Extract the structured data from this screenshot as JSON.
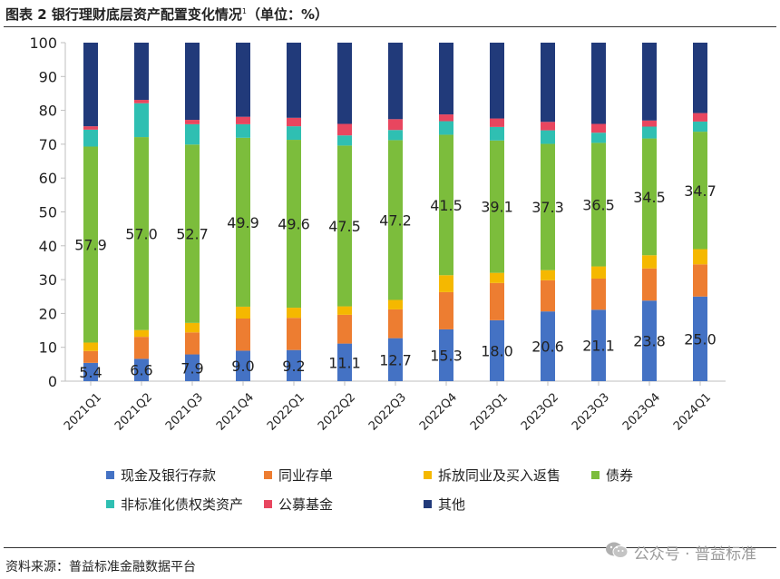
{
  "title": {
    "prefix": "图表 2 银行理财底层资产配置变化情况",
    "note_mark": "1",
    "suffix": "（单位：%）"
  },
  "source": "资料来源：普益标准金融数据平台",
  "watermark": "公众号 · 普益标准",
  "colors": {
    "cash": "#4472c4",
    "interbank": "#ed7d31",
    "repo": "#f5b800",
    "bonds": "#7cbd3c",
    "nonstd": "#2fbfb2",
    "funds": "#e8465f",
    "other": "#213a7a"
  },
  "chart_data": {
    "type": "bar",
    "stacked": true,
    "categories": [
      "2021Q1",
      "2021Q2",
      "2021Q3",
      "2021Q4",
      "2022Q1",
      "2022Q2",
      "2022Q3",
      "2022Q4",
      "2023Q1",
      "2023Q2",
      "2023Q3",
      "2023Q4",
      "2024Q1"
    ],
    "ylim": [
      0,
      100
    ],
    "yticks": [
      0,
      10,
      20,
      30,
      40,
      50,
      60,
      70,
      80,
      90,
      100
    ],
    "grid": false,
    "legend_position": "bottom",
    "series": [
      {
        "name": "现金及银行存款",
        "key": "cash",
        "values": [
          5.4,
          6.6,
          7.9,
          9.0,
          9.2,
          11.1,
          12.7,
          15.3,
          18.0,
          20.6,
          21.1,
          23.8,
          25.0
        ],
        "labels": [
          "5.4",
          "6.6",
          "7.9",
          "9.0",
          "9.2",
          "11.1",
          "12.7",
          "15.3",
          "18.0",
          "20.6",
          "21.1",
          "23.8",
          "25.0"
        ]
      },
      {
        "name": "同业存单",
        "key": "interbank",
        "values": [
          3.5,
          6.5,
          6.5,
          9.5,
          9.5,
          8.5,
          8.5,
          11.0,
          11.0,
          9.2,
          9.2,
          9.5,
          9.5
        ]
      },
      {
        "name": "拆放同业及买入返售",
        "key": "repo",
        "values": [
          2.5,
          2.0,
          2.8,
          3.5,
          3.0,
          2.5,
          2.8,
          5.0,
          3.0,
          3.0,
          3.6,
          3.9,
          4.5
        ]
      },
      {
        "name": "债券",
        "key": "bonds",
        "values": [
          57.9,
          57.0,
          52.7,
          49.9,
          49.6,
          47.5,
          47.2,
          41.5,
          39.1,
          37.3,
          36.5,
          34.5,
          34.7
        ],
        "labels": [
          "57.9",
          "57.0",
          "52.7",
          "49.9",
          "49.6",
          "47.5",
          "47.2",
          "41.5",
          "39.1",
          "37.3",
          "36.5",
          "34.5",
          "34.7"
        ]
      },
      {
        "name": "非标准化债权类资产",
        "key": "nonstd",
        "values": [
          5.0,
          10.0,
          6.0,
          4.0,
          4.0,
          3.0,
          3.0,
          4.0,
          4.0,
          4.0,
          3.0,
          3.5,
          3.0
        ]
      },
      {
        "name": "公募基金",
        "key": "funds",
        "values": [
          1.0,
          1.0,
          1.3,
          2.2,
          2.5,
          3.4,
          3.2,
          2.0,
          2.5,
          2.5,
          2.6,
          1.8,
          2.5
        ]
      },
      {
        "name": "其他",
        "key": "other",
        "values": [
          24.7,
          16.9,
          22.8,
          21.9,
          22.2,
          24.0,
          22.6,
          21.2,
          22.4,
          23.4,
          24.0,
          23.0,
          20.8
        ]
      }
    ]
  }
}
